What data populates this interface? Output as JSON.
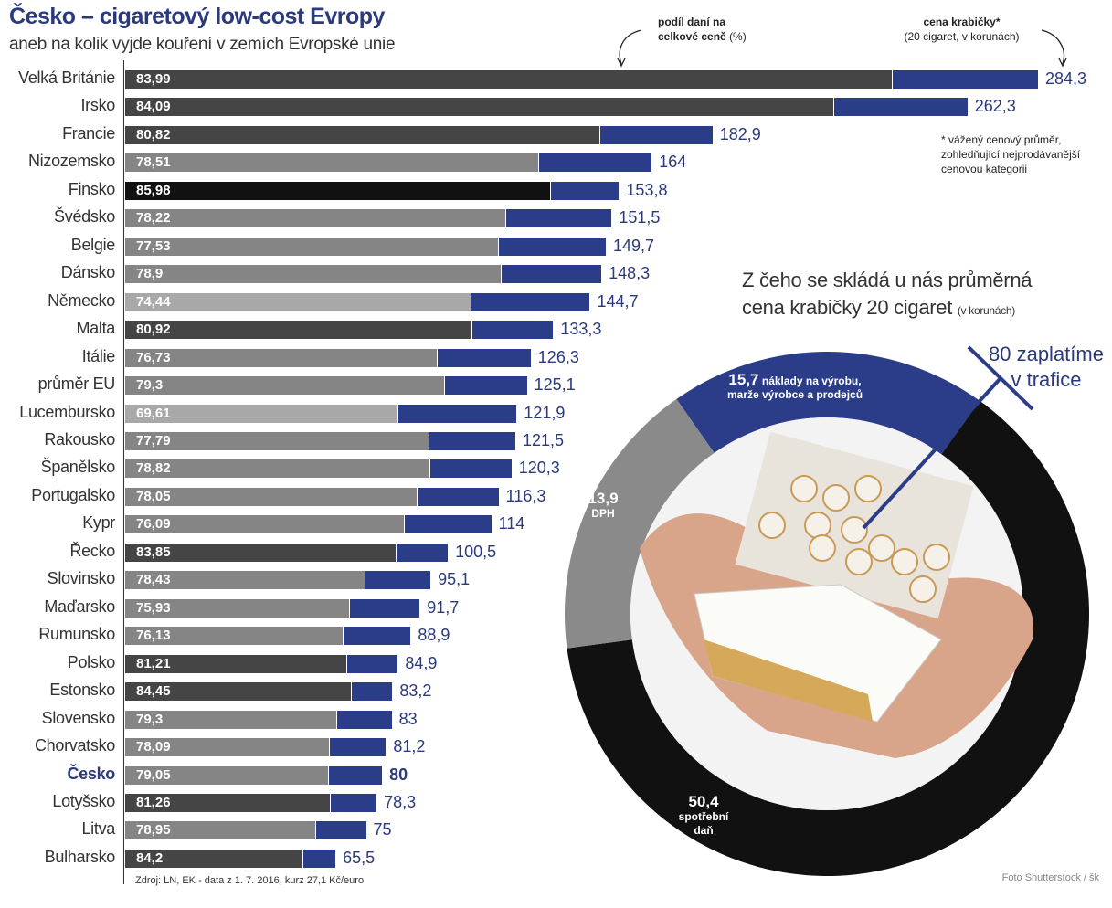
{
  "header": {
    "title": "Česko – cigaretový low-cost Evropy",
    "subtitle": "aneb na kolik vyjde kouření v zemích Evropské unie",
    "tax_header_bold1": "podíl daní na",
    "tax_header_bold2": "celkové ceně",
    "tax_header_unit": "(%)",
    "price_header_bold": "cena krabičky*",
    "price_header_unit": "(20 cigaret, v korunách)"
  },
  "footnote": [
    "* vážený cenový průměr,",
    "zohledňující nejprodávanější",
    "cenovou kategorii"
  ],
  "source": "Zdroj: LN, EK - data z 1. 7. 2016, kurz 27,1 Kč/euro",
  "credit": "Foto Shutterstock / šk",
  "colors": {
    "blue": "#2b3d88",
    "black": "#111111",
    "dark": "#454545",
    "mid": "#858585",
    "light": "#a8a8a8"
  },
  "chart_data": [
    {
      "type": "bar",
      "title": "Česko – cigaretový low-cost Evropy",
      "xlabel": "cena krabičky (Kč)",
      "ylabel": "",
      "categories": [
        "Velká Británie",
        "Irsko",
        "Francie",
        "Nizozemsko",
        "Finsko",
        "Švédsko",
        "Belgie",
        "Dánsko",
        "Německo",
        "Malta",
        "Itálie",
        "průměr EU",
        "Lucembursko",
        "Rakousko",
        "Španělsko",
        "Portugalsko",
        "Kypr",
        "Řecko",
        "Slovinsko",
        "Maďarsko",
        "Rumunsko",
        "Polsko",
        "Estonsko",
        "Slovensko",
        "Chorvatsko",
        "Česko",
        "Lotyšsko",
        "Litva",
        "Bulharsko"
      ],
      "tax_share_labels": [
        "83,99",
        "84,09",
        "80,82",
        "78,51",
        "85,98",
        "78,22",
        "77,53",
        "78,9",
        "74,44",
        "80,92",
        "76,73",
        "79,3",
        "69,61",
        "77,79",
        "78,82",
        "78,05",
        "76,09",
        "83,85",
        "78,43",
        "75,93",
        "76,13",
        "81,21",
        "84,45",
        "79,3",
        "78,09",
        "79,05",
        "81,26",
        "78,95",
        "84,2"
      ],
      "price_labels": [
        "284,3",
        "262,3",
        "182,9",
        "164",
        "153,8",
        "151,5",
        "149,7",
        "148,3",
        "144,7",
        "133,3",
        "126,3",
        "125,1",
        "121,9",
        "121,5",
        "120,3",
        "116,3",
        "114",
        "100,5",
        "95,1",
        "91,7",
        "88,9",
        "84,9",
        "83,2",
        "83",
        "81,2",
        "80",
        "78,3",
        "75",
        "65,5"
      ],
      "highlight": "Česko",
      "xlim": [
        0,
        284.3
      ]
    },
    {
      "type": "pie",
      "title": "Z čeho se skládá u nás průměrná",
      "title2": "cena krabičky 20 cigaret",
      "title_unit": "(v korunách)",
      "total_label": "80 zaplatíme",
      "total_label2": "v trafice",
      "slices": [
        {
          "value": 15.7,
          "label": "15,7",
          "text1": "náklady na výrobu,",
          "text2": "marže výrobce a prodejců"
        },
        {
          "value": 50.4,
          "label": "50,4",
          "text1": "spotřební",
          "text2": "daň"
        },
        {
          "value": 13.9,
          "label": "13,9",
          "text1": "DPH",
          "text2": ""
        }
      ]
    }
  ]
}
